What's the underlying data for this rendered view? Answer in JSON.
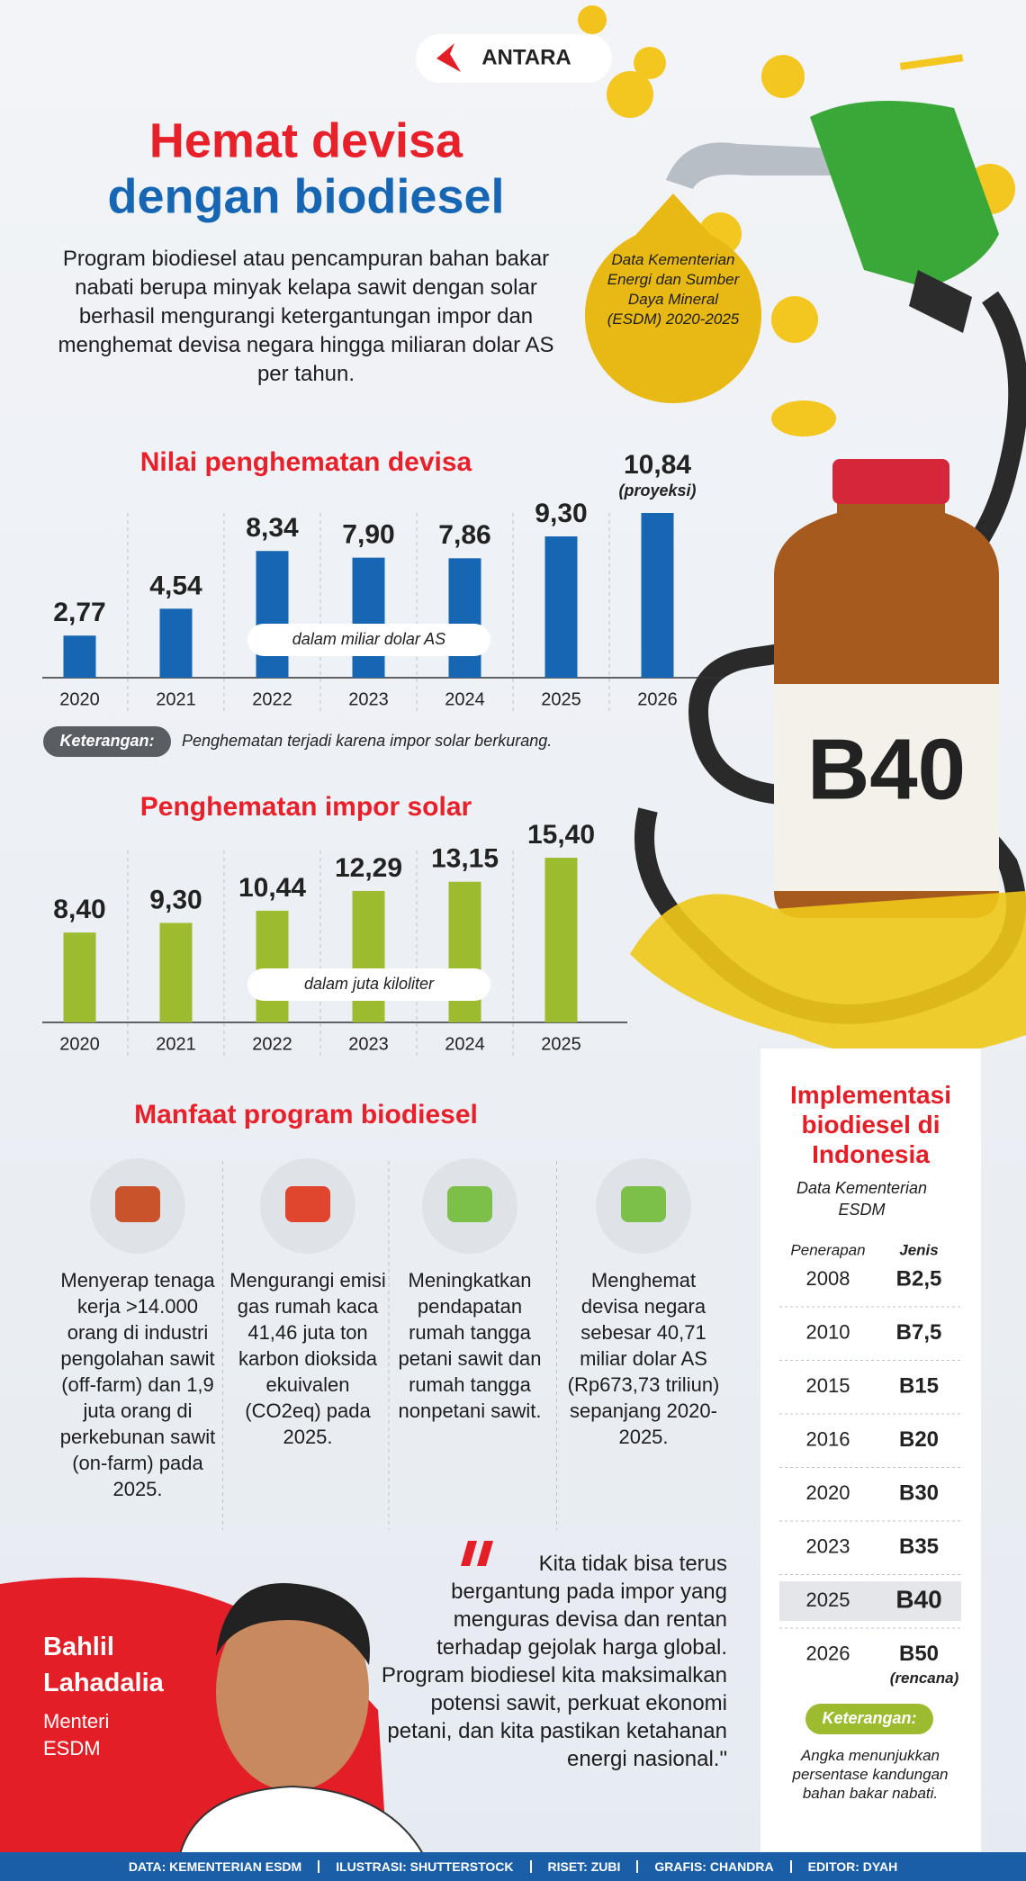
{
  "logo": "ANTARA",
  "header": {
    "title_lines": [
      "Hemat devisa",
      "dengan biodiesel"
    ],
    "intro": "Program biodiesel atau pencampuran bahan bakar nabati berupa minyak kelapa sawit dengan solar berhasil mengurangi ketergantungan impor dan menghemat devisa negara hingga miliaran dolar AS per tahun."
  },
  "source_badge": "Data Kementerian Energi dan Sumber Daya Mineral (ESDM) 2020-2025",
  "illustration": {
    "bottle_label": "B40"
  },
  "chart_data": [
    {
      "type": "bar",
      "title": "Nilai penghematan devisa",
      "categories": [
        "2020",
        "2021",
        "2022",
        "2023",
        "2024",
        "2025",
        "2026"
      ],
      "values": [
        2.77,
        4.54,
        8.34,
        7.9,
        7.86,
        9.3,
        10.84
      ],
      "value_labels": [
        "2,77",
        "4,54",
        "8,34",
        "7,90",
        "7,86",
        "9,30",
        "10,84"
      ],
      "projection_label": "(proyeksi)",
      "color": "#1766b4",
      "unit_label": "dalam miliar dolar AS",
      "note": {
        "label": "Keterangan:",
        "text": "Penghematan terjadi karena impor solar berkurang."
      }
    },
    {
      "type": "bar",
      "title": "Penghematan impor solar",
      "categories": [
        "2020",
        "2021",
        "2022",
        "2023",
        "2024",
        "2025"
      ],
      "values": [
        8.4,
        9.3,
        10.44,
        12.29,
        13.15,
        15.4
      ],
      "value_labels": [
        "8,40",
        "9,30",
        "10,44",
        "12,29",
        "13,15",
        "15,40"
      ],
      "color": "#9dbb2e",
      "unit_label": "dalam juta kiloliter"
    }
  ],
  "benefits": {
    "title": "Manfaat program biodiesel",
    "items": [
      "Menyerap tenaga kerja >14.000 orang di industri pengolahan sawit (off-farm) dan 1,9 juta orang di perkebunan sawit (on-farm) pada 2025.",
      "Mengurangi emisi gas rumah kaca 41,46 juta ton karbon dioksida ekuivalen (CO2eq) pada 2025.",
      "Meningkatkan pendapatan rumah tangga petani sawit dan rumah tangga nonpetani sawit.",
      "Menghemat devisa negara sebesar 40,71 miliar dolar AS (Rp673,73 triliun) sepanjang 2020-2025."
    ]
  },
  "implementation": {
    "title": "Implementasi biodiesel di Indonesia",
    "subtitle": "Data Kementerian ESDM",
    "headers": [
      "Penerapan",
      "Jenis"
    ],
    "rows": [
      [
        "2008",
        "B2,5"
      ],
      [
        "2010",
        "B7,5"
      ],
      [
        "2015",
        "B15"
      ],
      [
        "2016",
        "B20"
      ],
      [
        "2020",
        "B30"
      ],
      [
        "2023",
        "B35"
      ],
      [
        "2025",
        "B40"
      ],
      [
        "2026",
        "B50"
      ]
    ],
    "highlight_row": 6,
    "plan_label": "(rencana)",
    "note_label": "Keterangan:",
    "note": "Angka menunjukkan persentase kandungan bahan bakar nabati."
  },
  "quote": {
    "text": "Kita tidak bisa terus bergantung pada impor yang menguras devisa dan rentan terhadap gejolak harga global. Program biodiesel kita maksimalkan potensi sawit, perkuat ekonomi petani, dan kita pastikan ketahanan  energi nasional.\"",
    "speaker": "Bahlil Lahadalia",
    "role": "Menteri ESDM"
  },
  "footer": [
    "DATA: KEMENTERIAN ESDM",
    "ILUSTRASI: SHUTTERSTOCK",
    "RISET: ZUBI",
    "GRAFIS: CHANDRA",
    "EDITOR: DYAH"
  ]
}
